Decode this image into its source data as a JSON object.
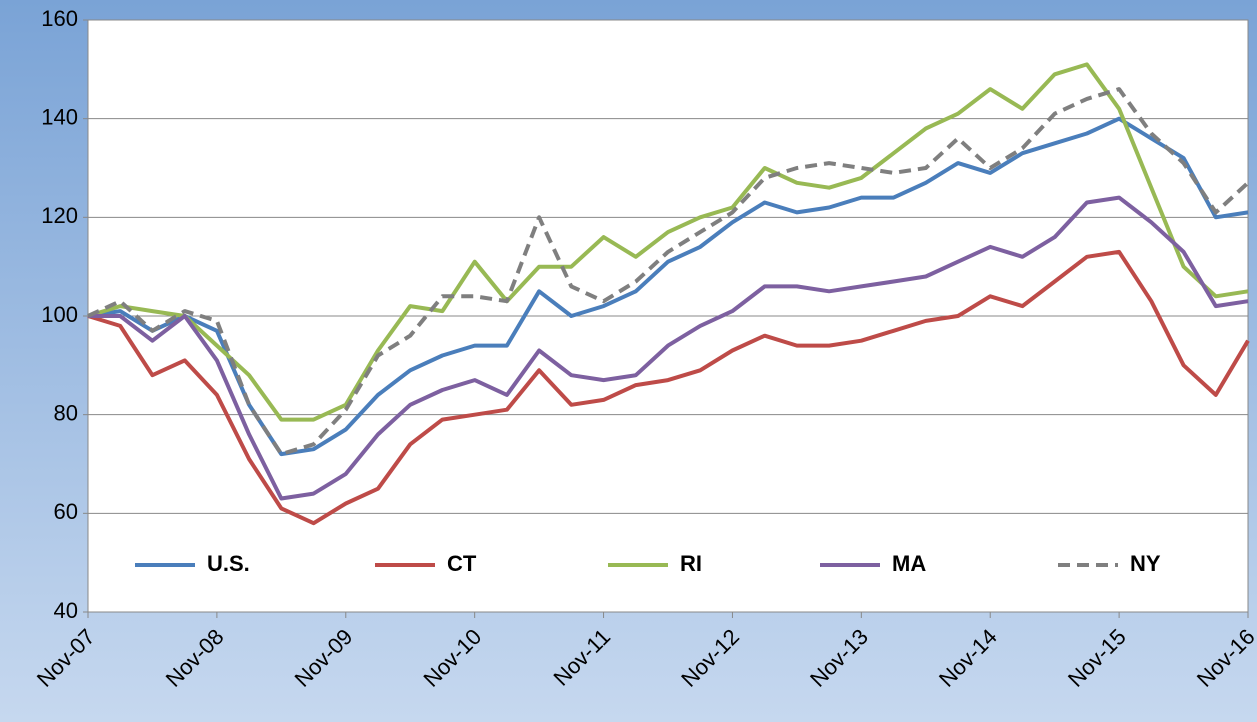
{
  "chart_data": {
    "type": "line",
    "categories": [
      "Nov-07",
      null,
      null,
      null,
      "Nov-08",
      null,
      null,
      null,
      "Nov-09",
      null,
      null,
      null,
      "Nov-10",
      null,
      null,
      null,
      "Nov-11",
      null,
      null,
      null,
      "Nov-12",
      null,
      null,
      null,
      "Nov-13",
      null,
      null,
      null,
      "Nov-14",
      null,
      null,
      null,
      "Nov-15",
      null,
      null,
      null,
      "Nov-16"
    ],
    "series": [
      {
        "name": "U.S.",
        "color": "#4a7ebb",
        "dashed": false,
        "values": [
          100,
          101,
          97,
          100,
          97,
          82,
          72,
          73,
          77,
          84,
          89,
          92,
          94,
          94,
          105,
          100,
          102,
          105,
          111,
          114,
          119,
          123,
          121,
          122,
          124,
          124,
          127,
          131,
          129,
          133,
          135,
          137,
          140,
          136,
          132,
          120,
          121
        ]
      },
      {
        "name": "CT",
        "color": "#be4b48",
        "dashed": false,
        "values": [
          100,
          98,
          88,
          91,
          84,
          71,
          61,
          58,
          62,
          65,
          74,
          79,
          80,
          81,
          89,
          82,
          83,
          86,
          87,
          89,
          93,
          96,
          94,
          94,
          95,
          97,
          99,
          100,
          104,
          102,
          107,
          112,
          113,
          103,
          90,
          84,
          95
        ]
      },
      {
        "name": "RI",
        "color": "#98b954",
        "dashed": false,
        "values": [
          100,
          102,
          101,
          100,
          94,
          88,
          79,
          79,
          82,
          93,
          102,
          101,
          111,
          103,
          110,
          110,
          116,
          112,
          117,
          120,
          122,
          130,
          127,
          126,
          128,
          133,
          138,
          141,
          146,
          142,
          149,
          151,
          142,
          126,
          110,
          104,
          105
        ]
      },
      {
        "name": "MA",
        "color": "#7d60a0",
        "dashed": false,
        "values": [
          100,
          100,
          95,
          100,
          91,
          76,
          63,
          64,
          68,
          76,
          82,
          85,
          87,
          84,
          93,
          88,
          87,
          88,
          94,
          98,
          101,
          106,
          106,
          105,
          106,
          107,
          108,
          111,
          114,
          112,
          116,
          123,
          124,
          119,
          113,
          102,
          103
        ]
      },
      {
        "name": "NY",
        "color": "#7f7f7f",
        "dashed": true,
        "values": [
          100,
          103,
          97,
          101,
          99,
          82,
          72,
          74,
          81,
          92,
          96,
          104,
          104,
          103,
          120,
          106,
          103,
          107,
          113,
          117,
          121,
          128,
          130,
          131,
          130,
          129,
          130,
          136,
          130,
          134,
          141,
          144,
          146,
          137,
          131,
          121,
          127
        ]
      }
    ],
    "ylim": [
      40,
      160
    ],
    "yticks": [
      40,
      60,
      80,
      100,
      120,
      140,
      160
    ],
    "grid": true,
    "legend": "bottom"
  }
}
